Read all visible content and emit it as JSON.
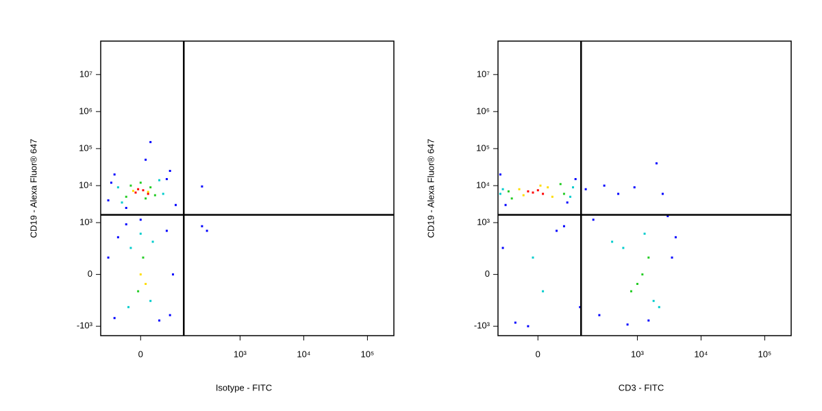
{
  "chart_data": [
    {
      "type": "scatter",
      "xlabel": "Isotype - FITC",
      "ylabel": "CD19 - Alexa Fluor® 647",
      "scale": "biexponential",
      "xlim": [
        -110,
        260000
      ],
      "ylim": [
        -1800,
        80000000
      ],
      "xticks": [
        0,
        {
          "value": 1000,
          "label": "10³"
        },
        {
          "value": 10000,
          "label": "10⁴"
        },
        {
          "value": 100000,
          "label": "10⁵"
        }
      ],
      "yticks": [
        {
          "value": -1000,
          "label": "-10³"
        },
        0,
        {
          "value": 1000,
          "label": "10³"
        },
        {
          "value": 10000,
          "label": "10⁴"
        },
        {
          "value": 100000,
          "label": "10⁵"
        },
        {
          "value": 1000000,
          "label": "10⁶"
        },
        {
          "value": 10000000,
          "label": "10⁷"
        }
      ],
      "gates": {
        "x": 125,
        "y": 1630
      },
      "series": [
        {
          "color": "#0000ff",
          "x": [
            -60,
            70,
            -80,
            90,
            10,
            -30,
            60,
            250,
            20,
            -70,
            -60,
            70,
            -50,
            60,
            -30,
            40,
            0,
            300,
            250,
            -80,
            80
          ],
          "y": [
            20000,
            25000,
            4000,
            3000,
            50000,
            2500,
            15000,
            9500,
            150000,
            12000,
            -600,
            -500,
            400,
            600,
            900,
            -700,
            1200,
            600,
            800,
            100,
            0
          ]
        },
        {
          "color": "#00cccc",
          "x": [
            -40,
            40,
            -50,
            50,
            -20,
            20,
            -25,
            25,
            0
          ],
          "y": [
            3500,
            14000,
            9000,
            6000,
            200,
            -200,
            -300,
            300,
            500
          ]
        },
        {
          "color": "#22cc22",
          "x": [
            -30,
            20,
            -20,
            30,
            0,
            10,
            -5,
            5
          ],
          "y": [
            5000,
            9000,
            10000,
            5500,
            12000,
            4500,
            -100,
            100
          ]
        },
        {
          "color": "#ffdd00",
          "x": [
            -15,
            15,
            0,
            10
          ],
          "y": [
            7200,
            6800,
            0,
            -50
          ]
        },
        {
          "color": "#ff0000",
          "x": [
            -10,
            5,
            15,
            -5
          ],
          "y": [
            6500,
            7500,
            6000,
            8000
          ]
        }
      ]
    },
    {
      "type": "scatter",
      "xlabel": "CD3 - FITC",
      "ylabel": "CD19 - Alexa Fluor® 647",
      "scale": "biexponential",
      "xlim": [
        -110,
        260000
      ],
      "ylim": [
        -1800,
        80000000
      ],
      "xticks": [
        0,
        {
          "value": 1000,
          "label": "10³"
        },
        {
          "value": 10000,
          "label": "10⁴"
        },
        {
          "value": 100000,
          "label": "10⁵"
        }
      ],
      "yticks": [
        {
          "value": -1000,
          "label": "-10³"
        },
        0,
        {
          "value": 1000,
          "label": "10³"
        },
        {
          "value": 10000,
          "label": "10⁴"
        },
        {
          "value": 100000,
          "label": "10⁵"
        },
        {
          "value": 1000000,
          "label": "10⁶"
        },
        {
          "value": 10000000,
          "label": "10⁷"
        }
      ],
      "gates": {
        "x": 125,
        "y": 1630
      },
      "series": [
        {
          "color": "#0000ff",
          "x": [
            -100,
            100,
            -80,
            70,
            150,
            300,
            500,
            900,
            2000,
            2500,
            200,
            120,
            -50,
            40,
            -90,
            3500,
            4000,
            250,
            700,
            1500,
            3000,
            -20,
            60
          ],
          "y": [
            20000,
            15000,
            3000,
            3500,
            8000,
            10000,
            6000,
            9000,
            40000,
            6000,
            1200,
            -300,
            -800,
            600,
            200,
            100,
            400,
            -500,
            -900,
            -700,
            1500,
            -1000,
            800
          ]
        },
        {
          "color": "#00cccc",
          "x": [
            -90,
            80,
            -100,
            90,
            600,
            1800,
            400,
            2200,
            1300,
            -10,
            10
          ],
          "y": [
            8000,
            5000,
            6000,
            9000,
            200,
            -200,
            300,
            -300,
            500,
            100,
            -100
          ]
        },
        {
          "color": "#22cc22",
          "x": [
            -60,
            50,
            -70,
            60,
            1200,
            800,
            1500,
            1000
          ],
          "y": [
            4500,
            11000,
            7000,
            6000,
            0,
            -100,
            100,
            -50
          ]
        },
        {
          "color": "#ffdd00",
          "x": [
            -30,
            20,
            -40,
            30,
            5
          ],
          "y": [
            5500,
            9000,
            8000,
            5000,
            10000
          ]
        },
        {
          "color": "#ff0000",
          "x": [
            -10,
            0,
            10,
            -20
          ],
          "y": [
            6500,
            7500,
            6000,
            7000
          ]
        }
      ]
    }
  ]
}
